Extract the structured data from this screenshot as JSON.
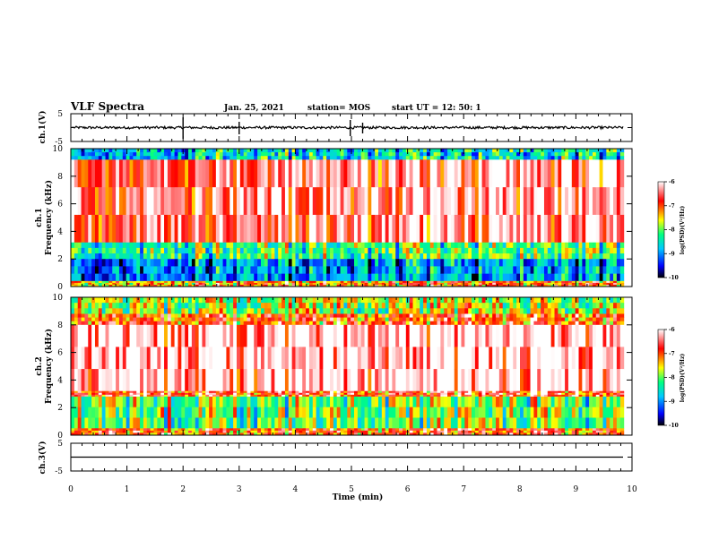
{
  "header": {
    "title": "VLF Spectra",
    "date": "Jan. 25, 2021",
    "station": "station= MOS",
    "start": "start  UT =   12: 50: 1"
  },
  "chart_data": [
    {
      "type": "line",
      "name": "ch1-voltage",
      "ylabel": "ch.1(V)",
      "ylim": [
        -5,
        5
      ],
      "y_ticks": [
        "5",
        "-5"
      ],
      "xlim": [
        0,
        10
      ],
      "baseline_value": 0
    },
    {
      "type": "heatmap",
      "name": "ch1-spectrogram",
      "ylabel": "ch.1\nFrequency (kHz)",
      "ylabel_lines": [
        "ch.1",
        "Frequency (kHz)"
      ],
      "ylim": [
        0,
        10
      ],
      "y_ticks": [
        "0",
        "2",
        "4",
        "6",
        "8",
        "10"
      ],
      "xlim": [
        0,
        10
      ],
      "data_end_min": 9.85,
      "colorbar": {
        "label": "log(PSD)(V²/Hz)",
        "min": -10,
        "max": -6,
        "ticks": [
          "-6",
          "-7",
          "-8",
          "-9",
          "-10"
        ]
      },
      "bands": [
        {
          "f0": 9.2,
          "f1": 10.0,
          "level": 0.35
        },
        {
          "f0": 3.2,
          "f1": 9.2,
          "level": 0.9
        },
        {
          "f0": 2.0,
          "f1": 3.2,
          "level": 0.45
        },
        {
          "f0": 0.4,
          "f1": 2.0,
          "level": 0.25
        },
        {
          "f0": 0.0,
          "f1": 0.4,
          "level": 0.7
        }
      ]
    },
    {
      "type": "heatmap",
      "name": "ch2-spectrogram",
      "ylabel": "ch.2\nFrequency (kHz)",
      "ylabel_lines": [
        "ch.2",
        "Frequency (kHz)"
      ],
      "ylim": [
        0,
        10
      ],
      "y_ticks": [
        "0",
        "2",
        "4",
        "6",
        "8",
        "10"
      ],
      "xlim": [
        0,
        10
      ],
      "data_end_min": 9.85,
      "colorbar": {
        "label": "log(PSD)(V²/Hz)",
        "min": -10,
        "max": -6,
        "ticks": [
          "-6",
          "-7",
          "-8",
          "-9",
          "-10"
        ]
      },
      "bands": [
        {
          "f0": 8.8,
          "f1": 10.0,
          "level": 0.55
        },
        {
          "f0": 8.0,
          "f1": 8.8,
          "level": 0.75
        },
        {
          "f0": 3.2,
          "f1": 8.0,
          "level": 0.97
        },
        {
          "f0": 2.8,
          "f1": 3.2,
          "level": 0.8
        },
        {
          "f0": 0.5,
          "f1": 2.8,
          "level": 0.5
        },
        {
          "f0": 0.0,
          "f1": 0.5,
          "level": 0.75
        }
      ]
    },
    {
      "type": "line",
      "name": "ch3-voltage",
      "ylabel": "ch.3(V)",
      "ylim": [
        -5,
        5
      ],
      "y_ticks": [
        "5",
        "-5"
      ],
      "xlim": [
        0,
        10
      ],
      "baseline_value": 0
    }
  ],
  "xaxis": {
    "label": "Time (min)",
    "ticks": [
      "0",
      "1",
      "2",
      "3",
      "4",
      "5",
      "6",
      "7",
      "8",
      "9",
      "10"
    ]
  },
  "colors": {
    "scale": [
      "#000000",
      "#0000ff",
      "#00c0ff",
      "#00ff80",
      "#ffff00",
      "#ff0000",
      "#ffffff"
    ]
  }
}
